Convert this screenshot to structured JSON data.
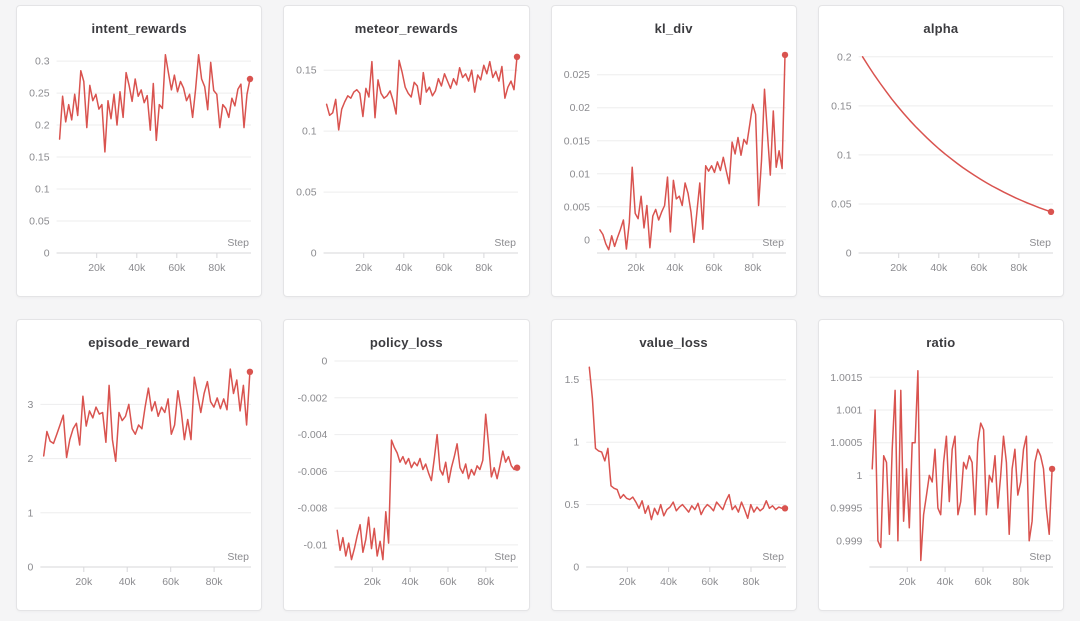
{
  "page": {
    "background": "#f5f5f6",
    "accent_line_color": "#d9534f"
  },
  "chart_data": [
    {
      "type": "line",
      "title": "intent_rewards",
      "xlabel": "Step",
      "color": "#d9534f",
      "x_domain": [
        0,
        97000
      ],
      "x_range": [
        1500,
        96500
      ],
      "x_ticks": [
        {
          "v": 20000,
          "label": "20k"
        },
        {
          "v": 40000,
          "label": "40k"
        },
        {
          "v": 60000,
          "label": "60k"
        },
        {
          "v": 80000,
          "label": "80k"
        }
      ],
      "ylim": [
        0,
        0.322
      ],
      "y_ticks": [
        0,
        0.05,
        0.1,
        0.15,
        0.2,
        0.25,
        0.3
      ],
      "end_marker": true,
      "values": [
        0.178,
        0.245,
        0.205,
        0.232,
        0.208,
        0.248,
        0.215,
        0.285,
        0.268,
        0.196,
        0.262,
        0.238,
        0.248,
        0.225,
        0.232,
        0.158,
        0.238,
        0.21,
        0.248,
        0.2,
        0.252,
        0.212,
        0.282,
        0.262,
        0.237,
        0.272,
        0.245,
        0.255,
        0.235,
        0.246,
        0.192,
        0.265,
        0.176,
        0.232,
        0.226,
        0.31,
        0.282,
        0.255,
        0.278,
        0.252,
        0.268,
        0.258,
        0.238,
        0.248,
        0.212,
        0.256,
        0.31,
        0.272,
        0.26,
        0.224,
        0.298,
        0.254,
        0.248,
        0.196,
        0.232,
        0.226,
        0.212,
        0.242,
        0.23,
        0.256,
        0.264,
        0.196,
        0.248,
        0.272
      ]
    },
    {
      "type": "line",
      "title": "meteor_rewards",
      "xlabel": "Step",
      "color": "#d9534f",
      "x_domain": [
        0,
        97000
      ],
      "x_range": [
        1500,
        96500
      ],
      "x_ticks": [
        {
          "v": 20000,
          "label": "20k"
        },
        {
          "v": 40000,
          "label": "40k"
        },
        {
          "v": 60000,
          "label": "60k"
        },
        {
          "v": 80000,
          "label": "80k"
        }
      ],
      "ylim": [
        0,
        0.169
      ],
      "y_ticks": [
        0,
        0.05,
        0.1,
        0.15
      ],
      "end_marker": true,
      "values": [
        0.122,
        0.113,
        0.115,
        0.126,
        0.101,
        0.118,
        0.124,
        0.129,
        0.127,
        0.132,
        0.134,
        0.131,
        0.112,
        0.135,
        0.128,
        0.157,
        0.111,
        0.142,
        0.131,
        0.127,
        0.129,
        0.133,
        0.125,
        0.114,
        0.158,
        0.148,
        0.136,
        0.131,
        0.128,
        0.14,
        0.137,
        0.122,
        0.148,
        0.132,
        0.136,
        0.129,
        0.133,
        0.143,
        0.137,
        0.147,
        0.141,
        0.135,
        0.143,
        0.138,
        0.152,
        0.144,
        0.147,
        0.141,
        0.15,
        0.132,
        0.146,
        0.142,
        0.154,
        0.147,
        0.157,
        0.144,
        0.149,
        0.141,
        0.153,
        0.127,
        0.136,
        0.141,
        0.134,
        0.161
      ]
    },
    {
      "type": "line",
      "title": "kl_div",
      "xlabel": "Step",
      "color": "#d9534f",
      "x_domain": [
        0,
        97000
      ],
      "x_range": [
        1500,
        96500
      ],
      "x_ticks": [
        {
          "v": 20000,
          "label": "20k"
        },
        {
          "v": 40000,
          "label": "40k"
        },
        {
          "v": 60000,
          "label": "60k"
        },
        {
          "v": 80000,
          "label": "80k"
        }
      ],
      "ylim": [
        -0.002,
        0.0292
      ],
      "y_ticks": [
        0,
        0.005,
        0.01,
        0.015,
        0.02,
        0.025
      ],
      "end_marker": true,
      "values": [
        0.0015,
        0.0008,
        -0.0006,
        -0.0015,
        0.0006,
        -0.001,
        0.0004,
        0.0016,
        0.003,
        -0.0014,
        0.0026,
        0.011,
        0.004,
        0.0032,
        0.0066,
        0.0018,
        0.0052,
        -0.0012,
        0.0036,
        0.0046,
        0.003,
        0.0042,
        0.0052,
        0.0095,
        0.0012,
        0.009,
        0.0062,
        0.0066,
        0.0052,
        0.0086,
        0.007,
        0.0042,
        -0.0004,
        0.0042,
        0.0086,
        0.0016,
        0.0112,
        0.0104,
        0.0112,
        0.0102,
        0.0118,
        0.0105,
        0.0125,
        0.0104,
        0.0085,
        0.0148,
        0.013,
        0.0155,
        0.0128,
        0.0152,
        0.0145,
        0.0175,
        0.0205,
        0.019,
        0.0052,
        0.012,
        0.0228,
        0.0162,
        0.0098,
        0.0195,
        0.011,
        0.0135,
        0.0108,
        0.028
      ]
    },
    {
      "type": "line",
      "title": "alpha",
      "xlabel": "Step",
      "color": "#d9534f",
      "x_domain": [
        0,
        97000
      ],
      "x_range": [
        2000,
        96000
      ],
      "x_ticks": [
        {
          "v": 20000,
          "label": "20k"
        },
        {
          "v": 40000,
          "label": "40k"
        },
        {
          "v": 60000,
          "label": "60k"
        },
        {
          "v": 80000,
          "label": "80k"
        }
      ],
      "ylim": [
        0,
        0.21
      ],
      "y_ticks": [
        0,
        0.05,
        0.1,
        0.15,
        0.2
      ],
      "end_marker": true,
      "values": [
        0.2,
        0.1905,
        0.1814,
        0.1728,
        0.1645,
        0.1567,
        0.1492,
        0.1421,
        0.1353,
        0.1289,
        0.1228,
        0.1169,
        0.1113,
        0.106,
        0.101,
        0.0962,
        0.0916,
        0.0872,
        0.0831,
        0.0791,
        0.0753,
        0.0718,
        0.0683,
        0.0651,
        0.062,
        0.059,
        0.0562,
        0.0535,
        0.051,
        0.0486,
        0.0462,
        0.044,
        0.042
      ]
    },
    {
      "type": "line",
      "title": "episode_reward",
      "xlabel": "Step",
      "color": "#d9534f",
      "x_domain": [
        0,
        97000
      ],
      "x_range": [
        1500,
        96500
      ],
      "x_ticks": [
        {
          "v": 20000,
          "label": "20k"
        },
        {
          "v": 40000,
          "label": "40k"
        },
        {
          "v": 60000,
          "label": "60k"
        },
        {
          "v": 80000,
          "label": "80k"
        }
      ],
      "ylim": [
        0,
        3.8
      ],
      "y_ticks": [
        0,
        1,
        2,
        3
      ],
      "end_marker": true,
      "values": [
        2.05,
        2.5,
        2.32,
        2.28,
        2.45,
        2.62,
        2.8,
        2.02,
        2.35,
        2.55,
        2.65,
        2.25,
        3.15,
        2.6,
        2.88,
        2.75,
        2.95,
        2.82,
        2.85,
        2.3,
        3.35,
        2.35,
        1.95,
        2.85,
        2.7,
        2.78,
        3.0,
        2.55,
        2.45,
        2.62,
        2.55,
        2.95,
        3.3,
        2.88,
        3.05,
        2.78,
        2.95,
        2.85,
        3.1,
        2.45,
        2.62,
        3.25,
        2.88,
        2.35,
        2.72,
        2.35,
        3.5,
        3.18,
        2.85,
        3.2,
        3.42,
        3.05,
        2.95,
        3.12,
        2.92,
        3.1,
        2.9,
        3.65,
        3.2,
        3.45,
        2.88,
        3.35,
        2.62,
        3.6
      ]
    },
    {
      "type": "line",
      "title": "policy_loss",
      "xlabel": "Step",
      "color": "#d9534f",
      "x_domain": [
        0,
        97000
      ],
      "x_range": [
        1500,
        96500
      ],
      "x_ticks": [
        {
          "v": 20000,
          "label": "20k"
        },
        {
          "v": 40000,
          "label": "40k"
        },
        {
          "v": 60000,
          "label": "60k"
        },
        {
          "v": 80000,
          "label": "80k"
        }
      ],
      "ylim": [
        -0.0112,
        0
      ],
      "y_ticks": [
        0,
        -0.002,
        -0.004,
        -0.006,
        -0.008,
        -0.01
      ],
      "end_marker": true,
      "values": [
        -0.0092,
        -0.0103,
        -0.0096,
        -0.0106,
        -0.0099,
        -0.0108,
        -0.0102,
        -0.0095,
        -0.0089,
        -0.0104,
        -0.0097,
        -0.0085,
        -0.0102,
        -0.0091,
        -0.0106,
        -0.0098,
        -0.0108,
        -0.0082,
        -0.0099,
        -0.0043,
        -0.0047,
        -0.005,
        -0.0055,
        -0.0052,
        -0.0056,
        -0.0053,
        -0.0058,
        -0.0055,
        -0.0057,
        -0.0053,
        -0.0059,
        -0.0056,
        -0.0061,
        -0.0065,
        -0.0053,
        -0.004,
        -0.0059,
        -0.0062,
        -0.0055,
        -0.0066,
        -0.0058,
        -0.0052,
        -0.0045,
        -0.0058,
        -0.0061,
        -0.0056,
        -0.0064,
        -0.0059,
        -0.0062,
        -0.0057,
        -0.0059,
        -0.0054,
        -0.0029,
        -0.0045,
        -0.0063,
        -0.0058,
        -0.0064,
        -0.0057,
        -0.0049,
        -0.0055,
        -0.0052,
        -0.0057,
        -0.0059,
        -0.0058
      ]
    },
    {
      "type": "line",
      "title": "value_loss",
      "xlabel": "Step",
      "color": "#d9534f",
      "x_domain": [
        0,
        97000
      ],
      "x_range": [
        1500,
        96500
      ],
      "x_ticks": [
        {
          "v": 20000,
          "label": "20k"
        },
        {
          "v": 40000,
          "label": "40k"
        },
        {
          "v": 60000,
          "label": "60k"
        },
        {
          "v": 80000,
          "label": "80k"
        }
      ],
      "ylim": [
        0,
        1.65
      ],
      "y_ticks": [
        0,
        0.5,
        1,
        1.5
      ],
      "end_marker": true,
      "values": [
        1.6,
        1.35,
        0.95,
        0.93,
        0.92,
        0.85,
        0.95,
        0.65,
        0.63,
        0.62,
        0.55,
        0.58,
        0.55,
        0.54,
        0.56,
        0.52,
        0.47,
        0.53,
        0.43,
        0.49,
        0.38,
        0.47,
        0.42,
        0.5,
        0.41,
        0.46,
        0.48,
        0.52,
        0.45,
        0.48,
        0.5,
        0.47,
        0.44,
        0.49,
        0.46,
        0.51,
        0.42,
        0.47,
        0.5,
        0.48,
        0.45,
        0.52,
        0.49,
        0.46,
        0.53,
        0.58,
        0.46,
        0.49,
        0.44,
        0.52,
        0.46,
        0.39,
        0.5,
        0.44,
        0.48,
        0.45,
        0.47,
        0.53,
        0.47,
        0.49,
        0.46,
        0.48,
        0.47,
        0.47
      ]
    },
    {
      "type": "line",
      "title": "ratio",
      "xlabel": "Step",
      "color": "#d9534f",
      "x_domain": [
        0,
        97000
      ],
      "x_range": [
        1500,
        96500
      ],
      "x_ticks": [
        {
          "v": 20000,
          "label": "20k"
        },
        {
          "v": 40000,
          "label": "40k"
        },
        {
          "v": 60000,
          "label": "60k"
        },
        {
          "v": 80000,
          "label": "80k"
        }
      ],
      "ylim": [
        0.9986,
        1.00175
      ],
      "y_ticks": [
        0.999,
        0.9995,
        1,
        1.0005,
        1.001,
        1.0015
      ],
      "end_marker": true,
      "values": [
        1.0001,
        1.001,
        0.999,
        0.9989,
        1.0003,
        1.0002,
        0.9991,
        1.0004,
        1.0013,
        0.999,
        1.0013,
        0.9993,
        1.0001,
        0.9992,
        1.0005,
        1.0005,
        1.0016,
        0.9987,
        0.9994,
        0.9997,
        1.0,
        0.9999,
        1.0004,
        0.9995,
        0.9994,
        1.0002,
        1.0006,
        0.9996,
        1.0004,
        1.0006,
        0.9994,
        0.9996,
        1.0002,
        1.0001,
        1.0003,
        1.0002,
        0.9994,
        1.0005,
        1.0008,
        1.0007,
        0.9994,
        1.0,
        0.9999,
        1.0003,
        0.9995,
        1.0,
        1.0006,
        1.0002,
        0.9991,
        1.0001,
        1.0004,
        0.9997,
        0.9999,
        1.0004,
        1.0006,
        0.999,
        0.9993,
        1.0002,
        1.0004,
        1.0003,
        1.0001,
        0.9995,
        0.9991,
        1.0001
      ]
    }
  ]
}
